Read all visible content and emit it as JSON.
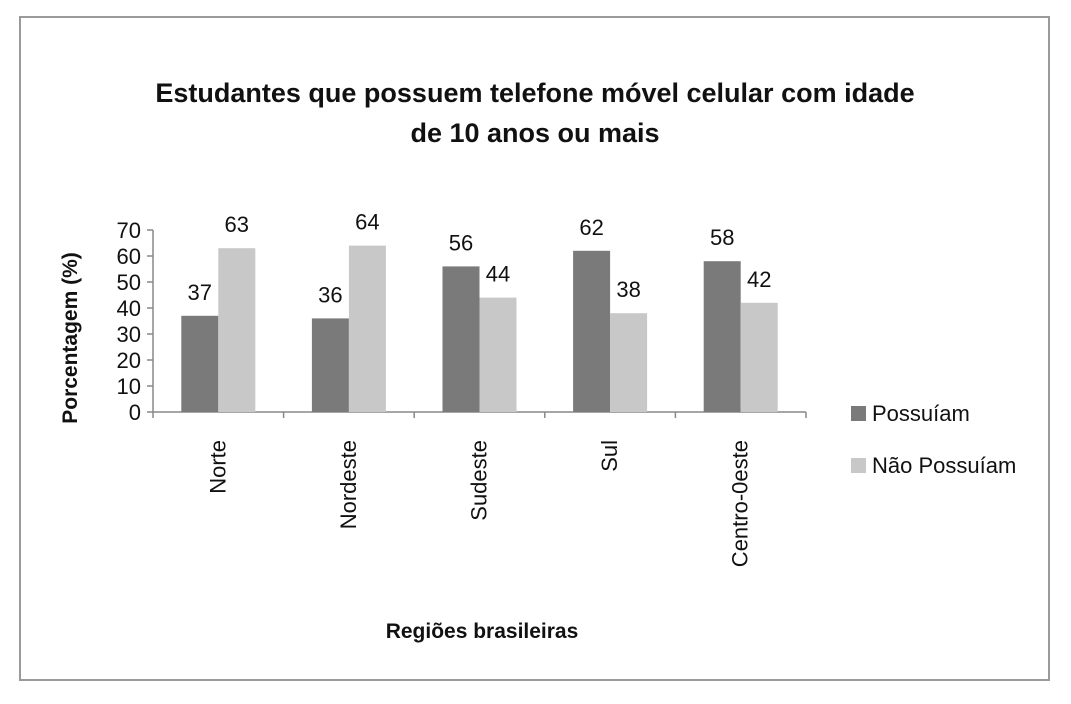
{
  "chart_data": {
    "type": "bar",
    "title_lines": [
      "Estudantes que possuem telefone móvel celular com idade",
      "de 10 anos ou mais"
    ],
    "xlabel": "Regiões brasileiras",
    "ylabel": "Porcentagem (%)",
    "categories": [
      "Norte",
      "Nordeste",
      "Sudeste",
      "Sul",
      "Centro-0este"
    ],
    "series": [
      {
        "name": "Possuíam",
        "values": [
          37,
          36,
          56,
          62,
          58
        ],
        "color": "#7a7a7a"
      },
      {
        "name": "Não Possuíam",
        "values": [
          63,
          64,
          44,
          38,
          42
        ],
        "color": "#c8c8c8"
      }
    ],
    "yticks": [
      0,
      10,
      20,
      30,
      40,
      50,
      60,
      70
    ],
    "ylim": [
      0,
      70
    ],
    "grid": false,
    "legend_position": "right"
  }
}
